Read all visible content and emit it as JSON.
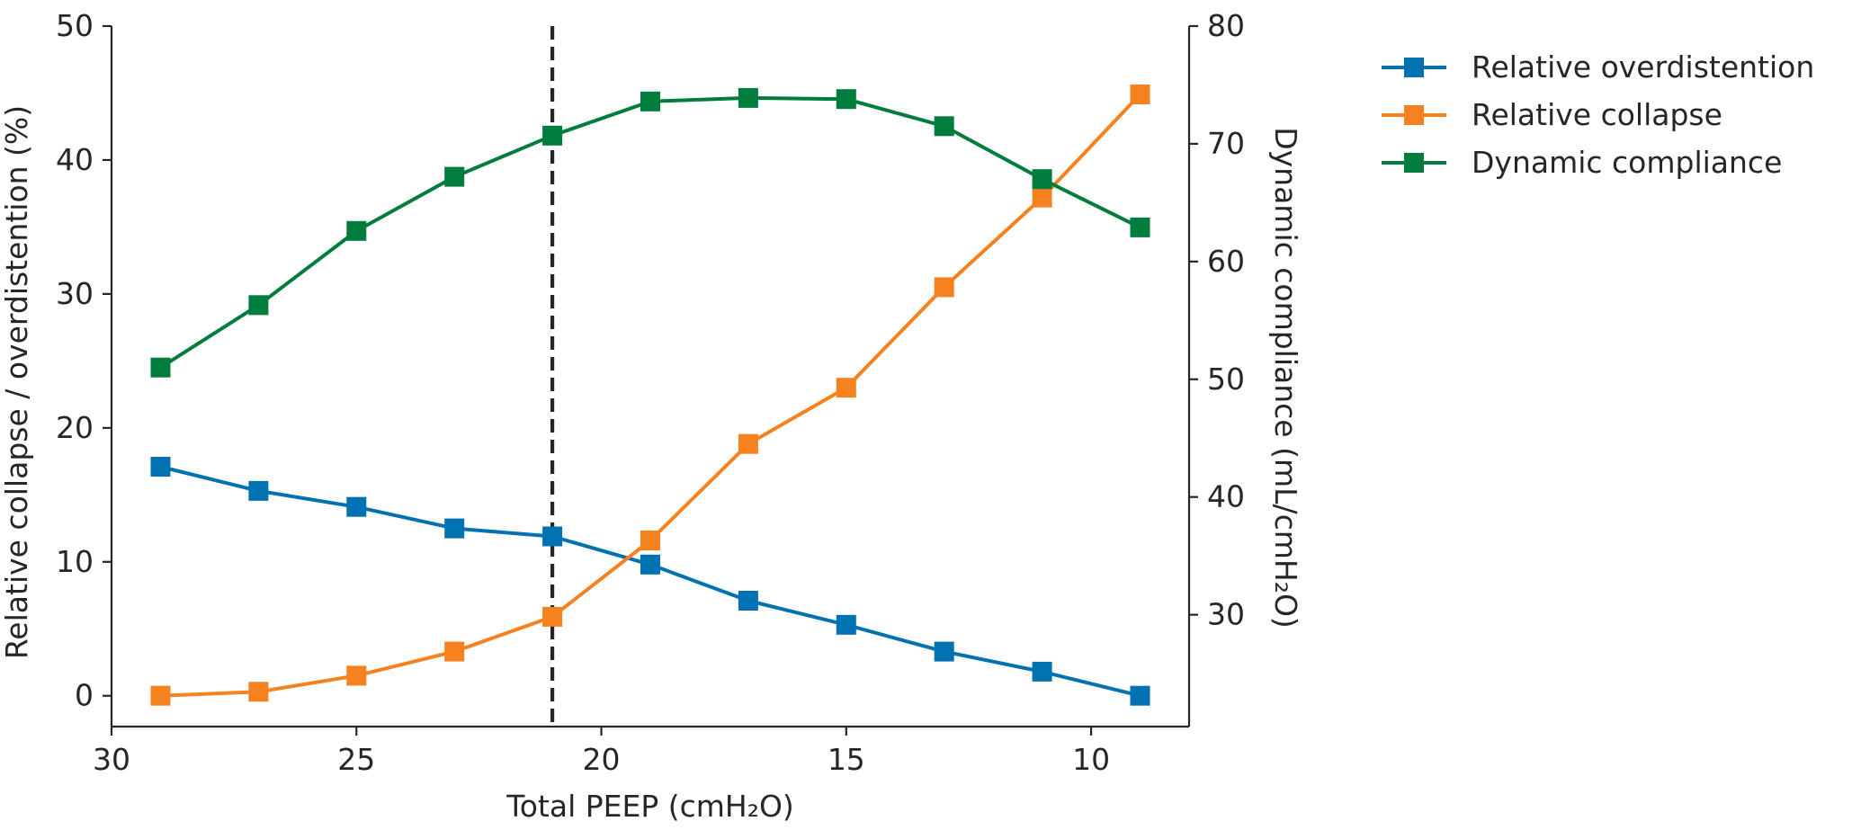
{
  "chart_data": {
    "type": "line",
    "title": "",
    "xlabel": "Total PEEP (cmH₂O)",
    "ylabel_left": "Relative collapse / overdistention (%)",
    "ylabel_right": "Dynamic compliance (mL/cmH₂O)",
    "x": [
      29,
      27,
      25,
      23,
      21,
      19,
      17,
      15,
      13,
      11,
      9
    ],
    "xlim": [
      30,
      8
    ],
    "x_reversed": true,
    "xticks": [
      30,
      25,
      20,
      15,
      10
    ],
    "ylim_left": [
      -2.3,
      50
    ],
    "yticks_left": [
      0,
      10,
      20,
      30,
      40,
      50
    ],
    "ylim_right": [
      20.5,
      80
    ],
    "yticks_right": [
      30,
      40,
      50,
      60,
      70,
      80
    ],
    "vline_x": 21,
    "vline_style": "dashed",
    "grid": false,
    "legend_position": "top-right, outside plot",
    "marker": "square",
    "series": [
      {
        "name": "Relative overdistention",
        "axis": "left",
        "color": "#0072b2",
        "values": [
          17.1,
          15.3,
          14.1,
          12.5,
          11.9,
          9.8,
          7.1,
          5.3,
          3.3,
          1.8,
          0.0
        ]
      },
      {
        "name": "Relative collapse",
        "axis": "left",
        "color": "#f5821f",
        "values": [
          0.0,
          0.3,
          1.5,
          3.3,
          5.9,
          11.6,
          18.8,
          23.0,
          30.5,
          37.2,
          44.9
        ]
      },
      {
        "name": "Dynamic compliance",
        "axis": "right",
        "color": "#007d3c",
        "values": [
          51.0,
          56.3,
          62.6,
          67.2,
          70.7,
          73.6,
          73.9,
          73.8,
          71.5,
          67.0,
          62.9
        ]
      }
    ]
  }
}
